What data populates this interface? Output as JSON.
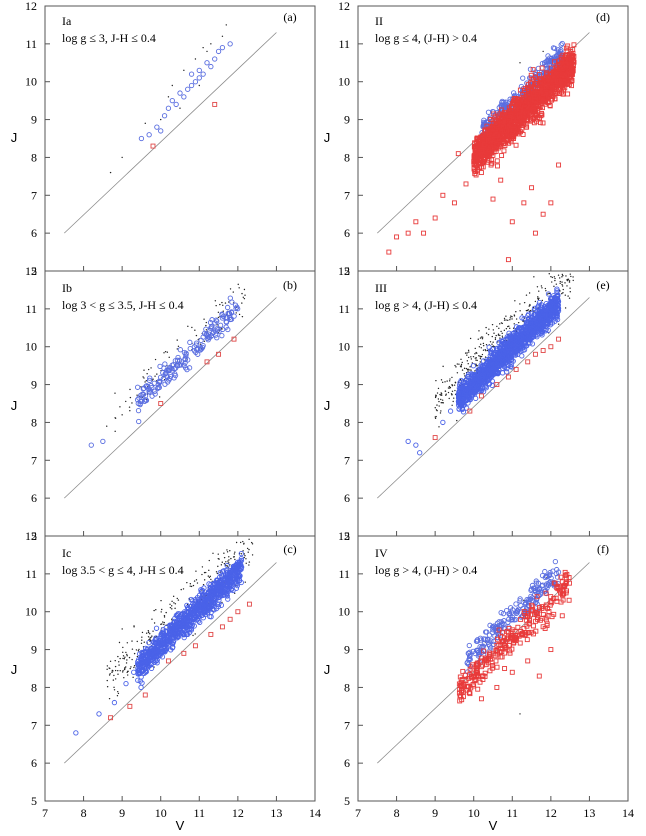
{
  "chart_data": [
    {
      "id": "a",
      "type": "scatter",
      "panel_tag": "(a)",
      "label_line1": "Ia",
      "label_line2": "log g ≤ 3, J-H ≤ 0.4",
      "xlabel": "",
      "ylabel": "J",
      "xlim": [
        7,
        14
      ],
      "ylim": [
        5,
        12
      ],
      "xticks": [],
      "yticks": [
        "5",
        "6",
        "7",
        "8",
        "9",
        "10",
        "11",
        "12"
      ],
      "reference_line": {
        "x": [
          7.5,
          13
        ],
        "y": [
          6.0,
          11.3
        ]
      },
      "series": [
        {
          "name": "blue circles",
          "color": "#5a6ee0",
          "points": [
            [
              9.5,
              8.5
            ],
            [
              9.7,
              8.6
            ],
            [
              9.9,
              8.8
            ],
            [
              10.0,
              8.7
            ],
            [
              10.1,
              9.1
            ],
            [
              10.2,
              9.3
            ],
            [
              10.4,
              9.4
            ],
            [
              10.6,
              9.6
            ],
            [
              10.7,
              9.8
            ],
            [
              10.8,
              9.9
            ],
            [
              10.9,
              10.0
            ],
            [
              11.0,
              10.3
            ],
            [
              11.1,
              10.2
            ],
            [
              11.2,
              10.5
            ],
            [
              11.3,
              10.4
            ],
            [
              11.4,
              10.6
            ],
            [
              11.5,
              10.8
            ],
            [
              11.6,
              10.9
            ],
            [
              11.8,
              11.0
            ],
            [
              10.5,
              9.7
            ],
            [
              10.3,
              9.5
            ],
            [
              11.0,
              10.1
            ],
            [
              10.8,
              10.2
            ]
          ]
        },
        {
          "name": "red squares",
          "color": "#e04848",
          "points": [
            [
              9.8,
              8.3
            ],
            [
              11.4,
              9.4
            ]
          ]
        },
        {
          "name": "black dots",
          "color": "#222222",
          "points": [
            [
              8.7,
              7.6
            ],
            [
              9.0,
              8.0
            ],
            [
              9.6,
              8.9
            ],
            [
              10.0,
              9.0
            ],
            [
              10.3,
              9.9
            ],
            [
              10.6,
              10.3
            ],
            [
              10.9,
              10.6
            ],
            [
              11.1,
              10.9
            ],
            [
              11.3,
              11.0
            ],
            [
              11.6,
              11.2
            ],
            [
              11.0,
              9.9
            ],
            [
              10.5,
              9.3
            ],
            [
              11.7,
              11.5
            ],
            [
              10.2,
              9.6
            ],
            [
              11.2,
              10.8
            ]
          ]
        }
      ]
    },
    {
      "id": "b",
      "type": "scatter",
      "panel_tag": "(b)",
      "label_line1": "Ib",
      "label_line2": "log 3 < g ≤ 3.5, J-H ≤ 0.4",
      "xlabel": "",
      "ylabel": "J",
      "xlim": [
        7,
        14
      ],
      "ylim": [
        5,
        12
      ],
      "xticks": [],
      "yticks": [
        "5",
        "6",
        "7",
        "8",
        "9",
        "10",
        "11",
        "12"
      ],
      "reference_line": {
        "x": [
          7.5,
          13
        ],
        "y": [
          6.0,
          11.3
        ]
      },
      "series": [
        {
          "name": "blue circles",
          "color": "#5a6ee0",
          "scatter_cloud": true,
          "cloud": {
            "x_min": 9.4,
            "x_max": 12.0,
            "slope": 0.97,
            "intercept": -0.6,
            "spread": 0.25,
            "count": 170
          },
          "points": [
            [
              8.2,
              7.4
            ],
            [
              8.5,
              7.5
            ],
            [
              9.4,
              8.6
            ],
            [
              9.6,
              8.6
            ]
          ]
        },
        {
          "name": "red squares",
          "color": "#e04848",
          "points": [
            [
              10.0,
              8.5
            ],
            [
              11.2,
              9.6
            ],
            [
              11.5,
              9.8
            ],
            [
              11.9,
              10.2
            ]
          ]
        },
        {
          "name": "black dots",
          "color": "#222222",
          "scatter_cloud": true,
          "cloud": {
            "x_min": 8.8,
            "x_max": 12.2,
            "slope": 0.97,
            "intercept": -0.35,
            "spread": 0.45,
            "count": 110
          },
          "points": [
            [
              8.6,
              7.9
            ],
            [
              9.0,
              8.2
            ]
          ]
        }
      ]
    },
    {
      "id": "c",
      "type": "scatter",
      "panel_tag": "(c)",
      "label_line1": "Ic",
      "label_line2": "log 3.5 < g ≤ 4, J-H ≤ 0.4",
      "xlabel": "",
      "ylabel": "J",
      "xlim": [
        7,
        14
      ],
      "ylim": [
        5,
        12
      ],
      "xticks": [
        "7",
        "8",
        "9",
        "10",
        "11",
        "12",
        "13",
        "14"
      ],
      "yticks": [
        "5",
        "6",
        "7",
        "8",
        "9",
        "10",
        "11",
        "12"
      ],
      "reference_line": {
        "x": [
          7.5,
          13
        ],
        "y": [
          6.0,
          11.3
        ]
      },
      "series": [
        {
          "name": "blue circles",
          "color": "#4a62e8",
          "scatter_cloud": true,
          "cloud": {
            "x_min": 9.4,
            "x_max": 12.1,
            "slope": 0.98,
            "intercept": -0.7,
            "spread": 0.3,
            "count": 900
          },
          "points": [
            [
              7.8,
              6.8
            ],
            [
              8.4,
              7.3
            ],
            [
              8.8,
              7.6
            ],
            [
              9.1,
              8.1
            ],
            [
              9.3,
              8.4
            ]
          ]
        },
        {
          "name": "red squares",
          "color": "#e04848",
          "points": [
            [
              8.7,
              7.2
            ],
            [
              9.2,
              7.5
            ],
            [
              9.6,
              7.8
            ],
            [
              10.2,
              8.7
            ],
            [
              10.6,
              8.9
            ],
            [
              10.9,
              9.1
            ],
            [
              11.3,
              9.4
            ],
            [
              11.6,
              9.6
            ],
            [
              11.8,
              9.8
            ],
            [
              12.0,
              10.0
            ],
            [
              12.3,
              10.2
            ]
          ]
        },
        {
          "name": "black dots",
          "color": "#222222",
          "scatter_cloud": true,
          "cloud": {
            "x_min": 8.6,
            "x_max": 12.4,
            "slope": 0.97,
            "intercept": -0.2,
            "spread": 0.55,
            "count": 320
          },
          "points": []
        }
      ]
    },
    {
      "id": "d",
      "type": "scatter",
      "panel_tag": "(d)",
      "label_line1": "II",
      "label_line2": "log g ≤ 4, (J-H) > 0.4",
      "xlabel": "",
      "ylabel": "J",
      "xlim": [
        7,
        14
      ],
      "ylim": [
        5,
        12
      ],
      "xticks": [],
      "yticks": [
        "5",
        "6",
        "7",
        "8",
        "9",
        "10",
        "11",
        "12"
      ],
      "reference_line": {
        "x": [
          7.5,
          13
        ],
        "y": [
          6.0,
          11.3
        ]
      },
      "series": [
        {
          "name": "blue circles",
          "color": "#5a6ee0",
          "scatter_cloud": true,
          "cloud": {
            "x_min": 10.2,
            "x_max": 12.3,
            "slope": 0.98,
            "intercept": -1.4,
            "spread": 0.3,
            "count": 350
          },
          "points": []
        },
        {
          "name": "red squares",
          "color": "#e83a3a",
          "scatter_cloud": true,
          "cloud": {
            "x_min": 10.0,
            "x_max": 12.6,
            "slope": 0.95,
            "intercept": -1.5,
            "spread": 0.4,
            "count": 1400
          },
          "points": [
            [
              7.8,
              5.5
            ],
            [
              8.0,
              5.9
            ],
            [
              8.3,
              6.0
            ],
            [
              8.5,
              6.3
            ],
            [
              8.7,
              6.0
            ],
            [
              9.0,
              6.4
            ],
            [
              9.2,
              7.0
            ],
            [
              9.5,
              6.8
            ],
            [
              9.8,
              7.3
            ],
            [
              10.2,
              7.6
            ],
            [
              10.5,
              6.9
            ],
            [
              10.7,
              7.4
            ],
            [
              11.0,
              6.3
            ],
            [
              11.3,
              6.8
            ],
            [
              11.5,
              7.2
            ],
            [
              11.8,
              6.5
            ],
            [
              12.0,
              6.8
            ],
            [
              10.9,
              5.3
            ],
            [
              11.6,
              6.0
            ],
            [
              12.2,
              7.8
            ],
            [
              9.6,
              8.1
            ],
            [
              10.3,
              8.0
            ]
          ]
        },
        {
          "name": "black dots",
          "color": "#222222",
          "points": [
            [
              11.2,
              10.5
            ],
            [
              11.8,
              10.8
            ],
            [
              12.1,
              10.7
            ]
          ]
        }
      ]
    },
    {
      "id": "e",
      "type": "scatter",
      "panel_tag": "(e)",
      "label_line1": "III",
      "label_line2": "log g > 4, (J-H) ≤ 0.4",
      "xlabel": "",
      "ylabel": "J",
      "xlim": [
        7,
        14
      ],
      "ylim": [
        5,
        12
      ],
      "xticks": [],
      "yticks": [
        "5",
        "6",
        "7",
        "8",
        "9",
        "10",
        "11",
        "12"
      ],
      "reference_line": {
        "x": [
          7.5,
          13
        ],
        "y": [
          6.0,
          11.3
        ]
      },
      "series": [
        {
          "name": "blue circles",
          "color": "#4a62e8",
          "scatter_cloud": true,
          "cloud": {
            "x_min": 9.6,
            "x_max": 12.2,
            "slope": 0.98,
            "intercept": -0.8,
            "spread": 0.3,
            "count": 1400
          },
          "points": [
            [
              8.3,
              7.5
            ],
            [
              8.5,
              7.4
            ],
            [
              8.6,
              7.2
            ],
            [
              9.2,
              8.0
            ],
            [
              9.4,
              8.3
            ]
          ]
        },
        {
          "name": "red squares",
          "color": "#e04848",
          "points": [
            [
              9.0,
              7.6
            ],
            [
              9.9,
              8.3
            ],
            [
              10.2,
              8.7
            ],
            [
              10.6,
              9.0
            ],
            [
              10.9,
              9.2
            ],
            [
              11.1,
              9.4
            ],
            [
              11.4,
              9.6
            ],
            [
              11.6,
              9.8
            ],
            [
              11.8,
              9.9
            ],
            [
              12.0,
              10.0
            ],
            [
              12.2,
              10.2
            ]
          ]
        },
        {
          "name": "black dots",
          "color": "#222222",
          "scatter_cloud": true,
          "cloud": {
            "x_min": 9.0,
            "x_max": 12.6,
            "slope": 0.96,
            "intercept": -0.1,
            "spread": 0.55,
            "count": 420
          },
          "points": []
        }
      ]
    },
    {
      "id": "f",
      "type": "scatter",
      "panel_tag": "(f)",
      "label_line1": "IV",
      "label_line2": "log g > 4, (J-H) > 0.4",
      "xlabel": "V",
      "ylabel": "J",
      "xlim": [
        7,
        14
      ],
      "ylim": [
        5,
        12
      ],
      "xticks": [
        "7",
        "8",
        "9",
        "10",
        "11",
        "12",
        "13",
        "14"
      ],
      "yticks": [
        "5",
        "6",
        "7",
        "8",
        "9",
        "10",
        "11",
        "12"
      ],
      "reference_line": {
        "x": [
          7.5,
          13
        ],
        "y": [
          6.0,
          11.3
        ]
      },
      "series": [
        {
          "name": "blue circles",
          "color": "#5a6ee0",
          "scatter_cloud": true,
          "cloud": {
            "x_min": 9.8,
            "x_max": 12.2,
            "slope": 0.98,
            "intercept": -0.9,
            "spread": 0.28,
            "count": 200
          },
          "points": []
        },
        {
          "name": "red squares",
          "color": "#e83a3a",
          "scatter_cloud": true,
          "cloud": {
            "x_min": 9.6,
            "x_max": 12.5,
            "slope": 0.96,
            "intercept": -1.3,
            "spread": 0.35,
            "count": 260
          },
          "points": [
            [
              9.8,
              8.2
            ],
            [
              10.2,
              7.7
            ],
            [
              10.6,
              8.0
            ],
            [
              10.8,
              8.5
            ],
            [
              11.0,
              8.4
            ],
            [
              11.4,
              8.7
            ],
            [
              11.7,
              8.3
            ],
            [
              12.0,
              9.0
            ]
          ]
        },
        {
          "name": "black dots",
          "color": "#222222",
          "points": [
            [
              10.6,
              9.6
            ],
            [
              11.0,
              10.1
            ],
            [
              11.3,
              10.3
            ],
            [
              11.6,
              10.6
            ],
            [
              11.9,
              10.9
            ],
            [
              10.3,
              9.2
            ],
            [
              11.2,
              7.3
            ]
          ]
        }
      ]
    }
  ]
}
